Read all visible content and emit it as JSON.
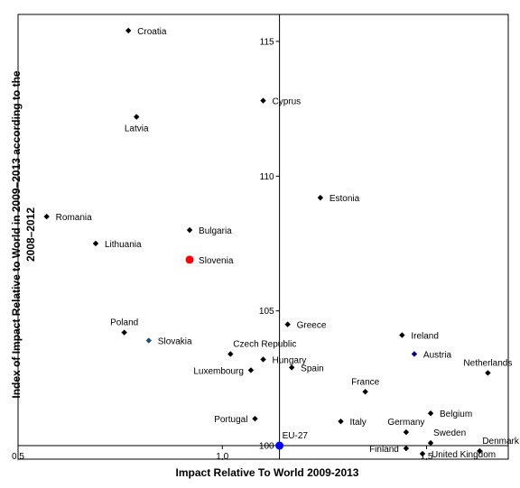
{
  "chart_data": {
    "type": "scatter",
    "title": "",
    "xlabel": "Impact Relative To World 2009-2013",
    "ylabel_lines": [
      "Index of Impact Relative to World in 2009–2013 according to the",
      "2008–2012"
    ],
    "xlim": [
      0.5,
      1.7
    ],
    "ylim": [
      99.5,
      116
    ],
    "x_tick_labels": [
      {
        "value": 0.5,
        "label": "0,5"
      },
      {
        "value": 1.0,
        "label": "1,0"
      },
      {
        "value": 1.5,
        "label": "1,5"
      }
    ],
    "y_tick_labels": [
      {
        "value": 100,
        "label": "100"
      },
      {
        "value": 105,
        "label": "105"
      },
      {
        "value": 110,
        "label": "110"
      },
      {
        "value": 115,
        "label": "115"
      }
    ],
    "crosshair": {
      "x": 1.14,
      "y": 100
    },
    "grid": false,
    "colors": {
      "default": "#000000",
      "slovenia": "#ff0000",
      "eu27": "#0000ff",
      "slovakia": "#1f4e79",
      "austria": "#00008b"
    },
    "points": [
      {
        "name": "Croatia",
        "x": 0.77,
        "y": 115.4,
        "label_pos": "right",
        "marker": "diamond",
        "color": "#000000"
      },
      {
        "name": "Cyprus",
        "x": 1.1,
        "y": 112.8,
        "label_pos": "right",
        "marker": "diamond",
        "color": "#000000"
      },
      {
        "name": "Latvia",
        "x": 0.79,
        "y": 112.2,
        "label_pos": "below",
        "marker": "diamond",
        "color": "#000000"
      },
      {
        "name": "Estonia",
        "x": 1.24,
        "y": 109.2,
        "label_pos": "right",
        "marker": "diamond",
        "color": "#000000"
      },
      {
        "name": "Romania",
        "x": 0.57,
        "y": 108.5,
        "label_pos": "right",
        "marker": "diamond",
        "color": "#000000"
      },
      {
        "name": "Bulgaria",
        "x": 0.92,
        "y": 108.0,
        "label_pos": "right",
        "marker": "diamond",
        "color": "#000000"
      },
      {
        "name": "Lithuania",
        "x": 0.69,
        "y": 107.5,
        "label_pos": "right",
        "marker": "diamond",
        "color": "#000000"
      },
      {
        "name": "Slovenia",
        "x": 0.92,
        "y": 106.9,
        "label_pos": "right",
        "marker": "circle",
        "color": "#ff0000"
      },
      {
        "name": "Poland",
        "x": 0.76,
        "y": 104.2,
        "label_pos": "above",
        "marker": "diamond",
        "color": "#000000"
      },
      {
        "name": "Greece",
        "x": 1.16,
        "y": 104.5,
        "label_pos": "right",
        "marker": "diamond",
        "color": "#000000"
      },
      {
        "name": "Slovakia",
        "x": 0.82,
        "y": 103.9,
        "label_pos": "right",
        "marker": "diamond",
        "color": "#1f4e79"
      },
      {
        "name": "Ireland",
        "x": 1.44,
        "y": 104.1,
        "label_pos": "right",
        "marker": "diamond",
        "color": "#000000"
      },
      {
        "name": "Czech Republic",
        "x": 1.02,
        "y": 103.4,
        "label_pos": "right-above",
        "marker": "diamond",
        "color": "#000000"
      },
      {
        "name": "Austria",
        "x": 1.47,
        "y": 103.4,
        "label_pos": "right",
        "marker": "diamond",
        "color": "#00008b"
      },
      {
        "name": "Hungary",
        "x": 1.1,
        "y": 103.2,
        "label_pos": "right",
        "marker": "diamond",
        "color": "#000000"
      },
      {
        "name": "Spain",
        "x": 1.17,
        "y": 102.9,
        "label_pos": "right",
        "marker": "diamond",
        "color": "#000000"
      },
      {
        "name": "Luxembourg",
        "x": 1.07,
        "y": 102.8,
        "label_pos": "left",
        "marker": "diamond",
        "color": "#000000"
      },
      {
        "name": "Netherlands",
        "x": 1.65,
        "y": 102.7,
        "label_pos": "above",
        "marker": "diamond",
        "color": "#000000"
      },
      {
        "name": "France",
        "x": 1.35,
        "y": 102.0,
        "label_pos": "above",
        "marker": "diamond",
        "color": "#000000"
      },
      {
        "name": "Belgium",
        "x": 1.51,
        "y": 101.2,
        "label_pos": "right",
        "marker": "diamond",
        "color": "#000000"
      },
      {
        "name": "Portugal",
        "x": 1.08,
        "y": 101.0,
        "label_pos": "left",
        "marker": "diamond",
        "color": "#000000"
      },
      {
        "name": "Italy",
        "x": 1.29,
        "y": 100.9,
        "label_pos": "right",
        "marker": "diamond",
        "color": "#000000"
      },
      {
        "name": "Germany",
        "x": 1.45,
        "y": 100.5,
        "label_pos": "above",
        "marker": "diamond",
        "color": "#000000"
      },
      {
        "name": "Sweden",
        "x": 1.51,
        "y": 100.1,
        "label_pos": "right-above",
        "marker": "diamond",
        "color": "#000000"
      },
      {
        "name": "Denmark",
        "x": 1.63,
        "y": 99.8,
        "label_pos": "right-above",
        "marker": "diamond",
        "color": "#000000"
      },
      {
        "name": "EU-27",
        "x": 1.14,
        "y": 100.0,
        "label_pos": "right-above",
        "marker": "circle",
        "color": "#0000ff"
      },
      {
        "name": "Finland",
        "x": 1.45,
        "y": 99.9,
        "label_pos": "left",
        "marker": "diamond",
        "color": "#000000"
      },
      {
        "name": "United Kingdom",
        "x": 1.49,
        "y": 99.7,
        "label_pos": "right",
        "marker": "diamond",
        "color": "#000000"
      }
    ]
  }
}
